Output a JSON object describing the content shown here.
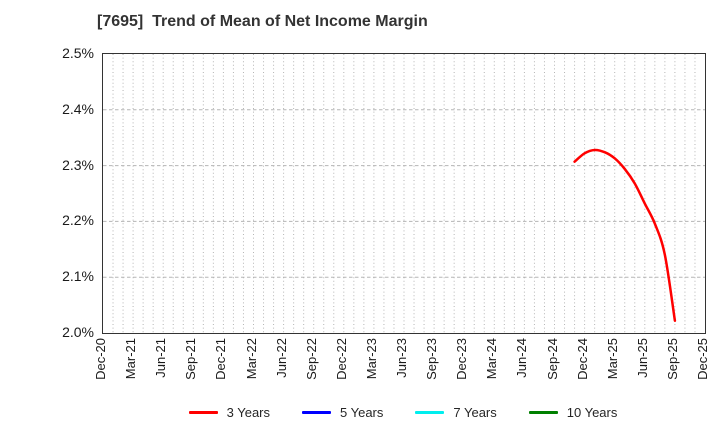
{
  "title": "[7695]  Trend of Mean of Net Income Margin",
  "chart_data": {
    "type": "line",
    "title": "[7695]  Trend of Mean of Net Income Margin",
    "xlabel": "",
    "ylabel": "",
    "ylim": [
      2.0,
      2.5
    ],
    "y_ticks": [
      2.0,
      2.1,
      2.2,
      2.3,
      2.4,
      2.5
    ],
    "y_tick_labels": [
      "2.0%",
      "2.1%",
      "2.2%",
      "2.3%",
      "2.4%",
      "2.5%"
    ],
    "x_axis_months_range": 60,
    "x_tick_step_months": 3,
    "x_tick_labels": [
      "Dec-20",
      "Mar-21",
      "Jun-21",
      "Sep-21",
      "Dec-21",
      "Mar-22",
      "Jun-22",
      "Sep-22",
      "Dec-22",
      "Mar-23",
      "Jun-23",
      "Sep-23",
      "Dec-23",
      "Mar-24",
      "Jun-24",
      "Sep-24",
      "Dec-24",
      "Mar-25",
      "Jun-25",
      "Sep-25",
      "Dec-25"
    ],
    "grid": {
      "vertical": "dotted monthly",
      "horizontal": "dashed every 0.1%",
      "color": "#b5b5b5"
    },
    "legend_position": "bottom-center",
    "series": [
      {
        "name": "3 Years",
        "color": "#ff0000",
        "start_month_index": 47,
        "x_months": [
          "Nov-24",
          "Dec-24",
          "Jan-25",
          "Feb-25",
          "Mar-25",
          "Apr-25",
          "May-25",
          "Jun-25",
          "Jul-25",
          "Aug-25",
          "Sep-25"
        ],
        "values": [
          2.307,
          2.322,
          2.328,
          2.324,
          2.313,
          2.294,
          2.268,
          2.232,
          2.196,
          2.14,
          2.022
        ]
      },
      {
        "name": "5 Years",
        "color": "#0000ff",
        "start_month_index": null,
        "x_months": [],
        "values": []
      },
      {
        "name": "7 Years",
        "color": "#00eeee",
        "start_month_index": null,
        "x_months": [],
        "values": []
      },
      {
        "name": "10 Years",
        "color": "#008000",
        "start_month_index": null,
        "x_months": [],
        "values": []
      }
    ]
  },
  "legend": {
    "items": [
      {
        "label": "3 Years",
        "color": "#ff0000"
      },
      {
        "label": "5 Years",
        "color": "#0000ff"
      },
      {
        "label": "7 Years",
        "color": "#00eeee"
      },
      {
        "label": "10 Years",
        "color": "#008000"
      }
    ]
  },
  "colors": {
    "plot_border": "#333333",
    "grid": "#b5b5b5",
    "title_text": "#333333",
    "axis_text": "#1a1a1a",
    "background": "#ffffff"
  }
}
